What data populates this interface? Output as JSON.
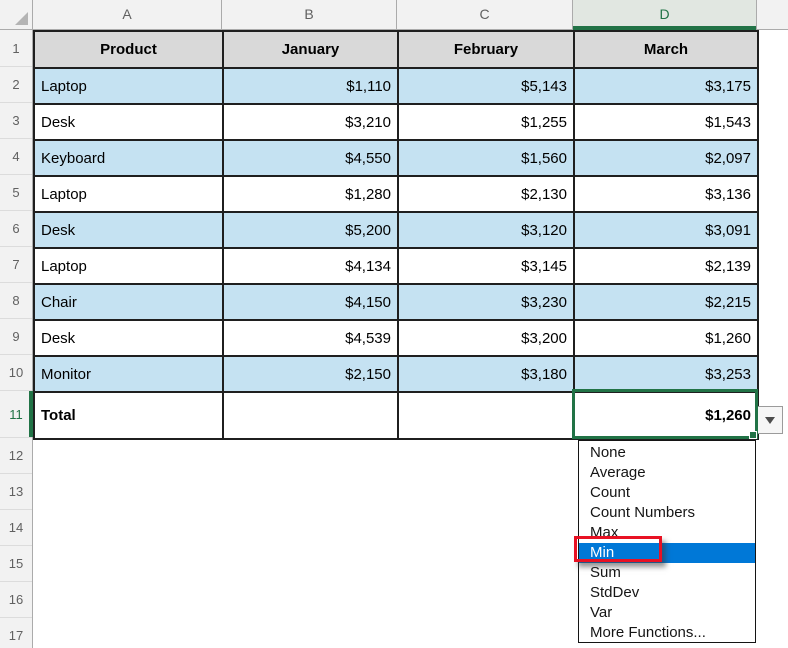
{
  "title": "Excel worksheet - total row summary function dropdown",
  "colors": {
    "header_fill": "#D9D9D9",
    "band_fill": "#C5E2F2",
    "grid_border": "#1F1F1F",
    "selection_green": "#217346",
    "highlight_blue": "#0078D7",
    "annotation_red": "#E81123",
    "strip_bg": "#F2F2F2",
    "strip_text": "#616161",
    "strip_border": "#ABABAB",
    "selected_header_bg": "#E1E7E1"
  },
  "sheet": {
    "column_letters": [
      "A",
      "B",
      "C",
      "D"
    ],
    "selected_column": "D",
    "row_numbers": [
      1,
      2,
      3,
      4,
      5,
      6,
      7,
      8,
      9,
      10,
      11,
      12,
      13,
      14,
      15,
      16,
      17
    ],
    "selected_row": 11,
    "selected_cell": "D11"
  },
  "table": {
    "headers": [
      "Product",
      "January",
      "February",
      "March"
    ],
    "rows": [
      [
        "Laptop",
        "$1,110",
        "$5,143",
        "$3,175"
      ],
      [
        "Desk",
        "$3,210",
        "$1,255",
        "$1,543"
      ],
      [
        "Keyboard",
        "$4,550",
        "$1,560",
        "$2,097"
      ],
      [
        "Laptop",
        "$1,280",
        "$2,130",
        "$3,136"
      ],
      [
        "Desk",
        "$5,200",
        "$3,120",
        "$3,091"
      ],
      [
        "Laptop",
        "$4,134",
        "$3,145",
        "$2,139"
      ],
      [
        "Chair",
        "$4,150",
        "$3,230",
        "$2,215"
      ],
      [
        "Desk",
        "$4,539",
        "$3,200",
        "$1,260"
      ],
      [
        "Monitor",
        "$2,150",
        "$3,180",
        "$3,253"
      ]
    ],
    "total_row": {
      "label": "Total",
      "january": "",
      "february": "",
      "march": "$1,260"
    }
  },
  "dropdown": {
    "items": [
      "None",
      "Average",
      "Count",
      "Count Numbers",
      "Max",
      "Min",
      "Sum",
      "StdDev",
      "Var",
      "More Functions..."
    ],
    "highlighted": "Min"
  }
}
